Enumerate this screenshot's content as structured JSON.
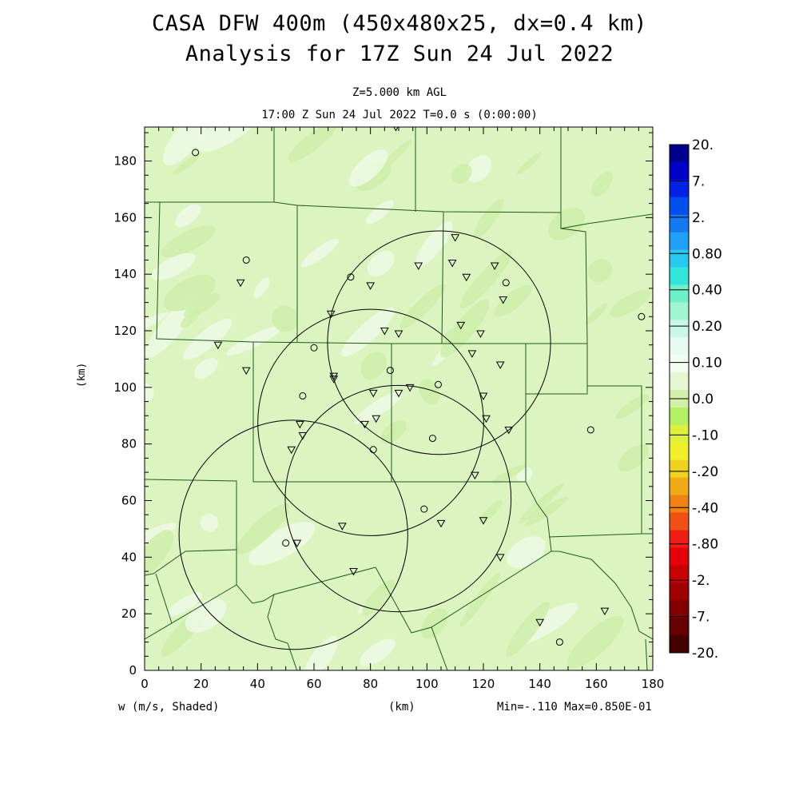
{
  "title": {
    "line1": "CASA DFW 400m (450x480x25, dx=0.4 km)",
    "line2": "Analysis for 17Z Sun 24 Jul 2022"
  },
  "subtitle": {
    "level": "Z=5.000 km AGL",
    "time": "17:00 Z Sun 24 Jul 2022    T=0.0 s (0:00:00)"
  },
  "labels": {
    "variable": "w (m/s, Shaded)",
    "x_unit": "(km)",
    "y_unit": "(km)",
    "minmax": "Min=-.110 Max=0.850E-01"
  },
  "axes": {
    "x_ticks": [
      "0",
      "20",
      "40",
      "60",
      "80",
      "100",
      "120",
      "140",
      "160",
      "180"
    ],
    "y_ticks": [
      "0",
      "20",
      "40",
      "60",
      "80",
      "100",
      "120",
      "140",
      "160",
      "180"
    ],
    "x_range": [
      0,
      180
    ],
    "y_range": [
      0,
      192
    ]
  },
  "colorbar": {
    "labels": [
      "20.",
      "7.",
      "2.",
      "0.80",
      "0.40",
      "0.20",
      "0.10",
      "0.0",
      "-.10",
      "-.20",
      "-.40",
      "-.80",
      "-2.",
      "-7.",
      "-20."
    ],
    "colors": [
      "#00008c",
      "#0000c8",
      "#0022e6",
      "#0050f0",
      "#1478f0",
      "#1ea0f5",
      "#28c8f0",
      "#32e6dc",
      "#6ef0c8",
      "#a0f5d2",
      "#c8f8e6",
      "#e6fcf0",
      "#f2fff0",
      "#e6f8d2",
      "#d2f0aa",
      "#b4f064",
      "#dcf03c",
      "#f0f028",
      "#f0d21e",
      "#f0aa14",
      "#f08214",
      "#f05014",
      "#f01e14",
      "#e6000a",
      "#c80000",
      "#a00000",
      "#820000",
      "#640000",
      "#460000"
    ]
  },
  "colors": {
    "background_field": "#dcf5c0",
    "light_patch": "#eefae6",
    "darker_patch": "#cdeea8",
    "county_lines": "#1e5a1e"
  },
  "radars": [
    {
      "x": 104.3,
      "y": 115.8,
      "r": 39.5
    },
    {
      "x": 80.1,
      "y": 87.6,
      "r": 40.0
    },
    {
      "x": 89.8,
      "y": 60.7,
      "r": 40.0
    },
    {
      "x": 52.7,
      "y": 47.9,
      "r": 40.5
    }
  ],
  "stations": {
    "triangles": [
      [
        89,
        192
      ],
      [
        110,
        153
      ],
      [
        97,
        143
      ],
      [
        109,
        144
      ],
      [
        114,
        139
      ],
      [
        124,
        143
      ],
      [
        127,
        131
      ],
      [
        34,
        137
      ],
      [
        66,
        126
      ],
      [
        80,
        136
      ],
      [
        112,
        122
      ],
      [
        119,
        119
      ],
      [
        85,
        120
      ],
      [
        90,
        119
      ],
      [
        26,
        115
      ],
      [
        116,
        112
      ],
      [
        126,
        108
      ],
      [
        36,
        106
      ],
      [
        67,
        104
      ],
      [
        67,
        103
      ],
      [
        120,
        97
      ],
      [
        81,
        98
      ],
      [
        90,
        98
      ],
      [
        94,
        100
      ],
      [
        121,
        89
      ],
      [
        129,
        85
      ],
      [
        78,
        87
      ],
      [
        82,
        89
      ],
      [
        55,
        87
      ],
      [
        56,
        83
      ],
      [
        52,
        78
      ],
      [
        117,
        69
      ],
      [
        70,
        51
      ],
      [
        120,
        53
      ],
      [
        105,
        52
      ],
      [
        54,
        45
      ],
      [
        126,
        40
      ],
      [
        74,
        35
      ],
      [
        140,
        17
      ],
      [
        163,
        21
      ]
    ],
    "circles": [
      [
        18,
        183
      ],
      [
        36,
        145
      ],
      [
        73,
        139
      ],
      [
        128,
        137
      ],
      [
        60,
        114
      ],
      [
        87,
        106
      ],
      [
        104,
        101
      ],
      [
        56,
        97
      ],
      [
        102,
        82
      ],
      [
        81,
        78
      ],
      [
        99,
        57
      ],
      [
        50,
        45
      ],
      [
        158,
        85
      ],
      [
        176,
        125
      ],
      [
        147,
        10
      ]
    ]
  }
}
